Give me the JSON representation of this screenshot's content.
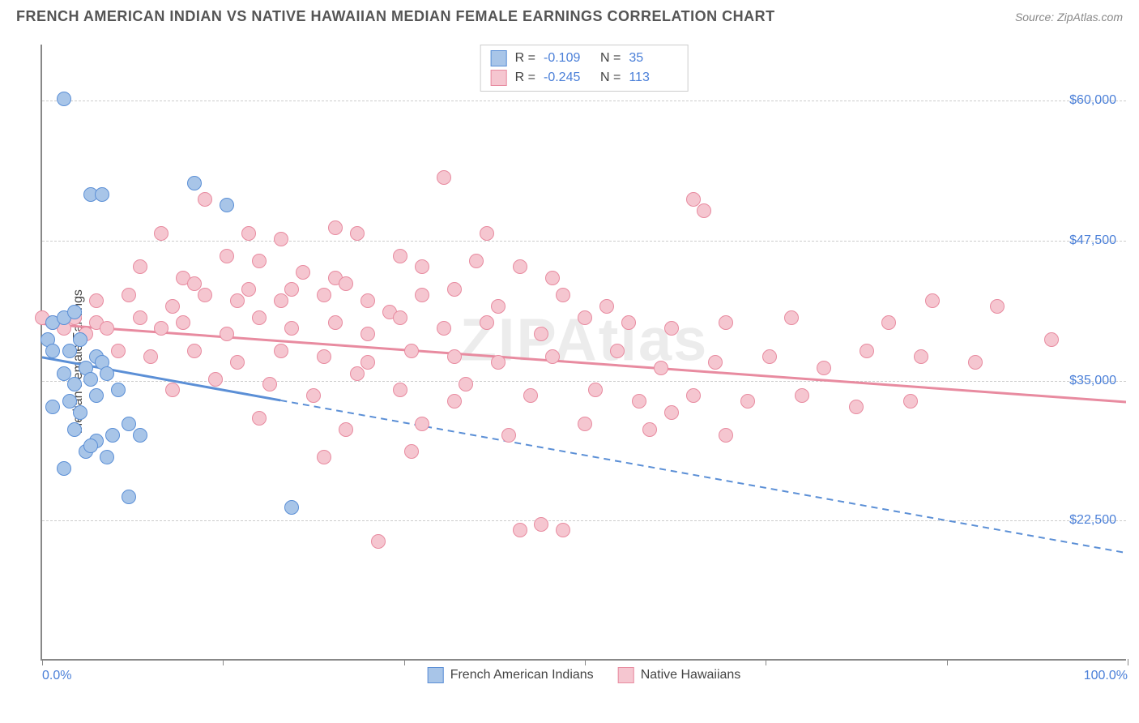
{
  "title": "FRENCH AMERICAN INDIAN VS NATIVE HAWAIIAN MEDIAN FEMALE EARNINGS CORRELATION CHART",
  "source": "Source: ZipAtlas.com",
  "watermark": "ZIPAtlas",
  "ylabel": "Median Female Earnings",
  "chart": {
    "type": "scatter",
    "xlim": [
      0,
      100
    ],
    "ylim": [
      10000,
      65000
    ],
    "yticks": [
      22500,
      35000,
      47500,
      60000
    ],
    "ytick_labels": [
      "$22,500",
      "$35,000",
      "$47,500",
      "$60,000"
    ],
    "xticks": [
      0,
      16.67,
      33.33,
      50,
      66.67,
      83.33,
      100
    ],
    "xtick_labels_shown": {
      "0": "0.0%",
      "100": "100.0%"
    },
    "grid_color": "#cccccc",
    "axis_color": "#888888",
    "background_color": "#ffffff",
    "tick_label_color": "#4a7fd8",
    "marker_radius": 9,
    "marker_border_width": 1.5,
    "marker_fill_opacity": 0.25
  },
  "series": [
    {
      "name": "French American Indians",
      "color_border": "#5b8fd6",
      "color_fill": "#a8c5e8",
      "R": "-0.109",
      "N": "35",
      "trend": {
        "x1": 0,
        "y1": 37000,
        "x2": 100,
        "y2": 19500,
        "solid_until_x": 22
      },
      "points": [
        [
          2,
          60000
        ],
        [
          4.5,
          51500
        ],
        [
          5.5,
          51500
        ],
        [
          14,
          52500
        ],
        [
          17,
          50500
        ],
        [
          1,
          40000
        ],
        [
          0.5,
          38500
        ],
        [
          1,
          37500
        ],
        [
          2,
          40500
        ],
        [
          2.5,
          37500
        ],
        [
          3,
          41000
        ],
        [
          3.5,
          38500
        ],
        [
          4,
          36000
        ],
        [
          5,
          37000
        ],
        [
          2,
          35500
        ],
        [
          3,
          34500
        ],
        [
          4.5,
          35000
        ],
        [
          5.5,
          36500
        ],
        [
          1,
          32500
        ],
        [
          2.5,
          33000
        ],
        [
          3.5,
          32000
        ],
        [
          5,
          33500
        ],
        [
          6,
          35500
        ],
        [
          7,
          34000
        ],
        [
          3,
          30500
        ],
        [
          5,
          29500
        ],
        [
          4,
          28500
        ],
        [
          6.5,
          30000
        ],
        [
          8,
          31000
        ],
        [
          9,
          30000
        ],
        [
          2,
          27000
        ],
        [
          4.5,
          29000
        ],
        [
          6,
          28000
        ],
        [
          8,
          24500
        ],
        [
          23,
          23500
        ]
      ]
    },
    {
      "name": "Native Hawaiians",
      "color_border": "#e88ba0",
      "color_fill": "#f5c6d0",
      "R": "-0.245",
      "N": "113",
      "trend": {
        "x1": 0,
        "y1": 40000,
        "x2": 100,
        "y2": 33000,
        "solid_until_x": 100
      },
      "points": [
        [
          15,
          51000
        ],
        [
          37,
          53000
        ],
        [
          60,
          51000
        ],
        [
          11,
          48000
        ],
        [
          19,
          48000
        ],
        [
          22,
          47500
        ],
        [
          27,
          48500
        ],
        [
          29,
          48000
        ],
        [
          41,
          48000
        ],
        [
          61,
          50000
        ],
        [
          9,
          45000
        ],
        [
          13,
          44000
        ],
        [
          17,
          46000
        ],
        [
          20,
          45500
        ],
        [
          24,
          44500
        ],
        [
          27,
          44000
        ],
        [
          33,
          46000
        ],
        [
          35,
          45000
        ],
        [
          40,
          45500
        ],
        [
          44,
          45000
        ],
        [
          47,
          44000
        ],
        [
          5,
          42000
        ],
        [
          8,
          42500
        ],
        [
          12,
          41500
        ],
        [
          14,
          43500
        ],
        [
          15,
          42500
        ],
        [
          18,
          42000
        ],
        [
          19,
          43000
        ],
        [
          22,
          42000
        ],
        [
          23,
          43000
        ],
        [
          26,
          42500
        ],
        [
          28,
          43500
        ],
        [
          30,
          42000
        ],
        [
          32,
          41000
        ],
        [
          35,
          42500
        ],
        [
          38,
          43000
        ],
        [
          42,
          41500
        ],
        [
          48,
          42500
        ],
        [
          52,
          41500
        ],
        [
          0,
          40500
        ],
        [
          1,
          40000
        ],
        [
          2,
          39500
        ],
        [
          3,
          40500
        ],
        [
          4,
          39000
        ],
        [
          5,
          40000
        ],
        [
          6,
          39500
        ],
        [
          9,
          40500
        ],
        [
          11,
          39500
        ],
        [
          13,
          40000
        ],
        [
          17,
          39000
        ],
        [
          20,
          40500
        ],
        [
          23,
          39500
        ],
        [
          27,
          40000
        ],
        [
          30,
          39000
        ],
        [
          33,
          40500
        ],
        [
          37,
          39500
        ],
        [
          41,
          40000
        ],
        [
          46,
          39000
        ],
        [
          50,
          40500
        ],
        [
          54,
          40000
        ],
        [
          58,
          39500
        ],
        [
          63,
          40000
        ],
        [
          69,
          40500
        ],
        [
          78,
          40000
        ],
        [
          82,
          42000
        ],
        [
          88,
          41500
        ],
        [
          93,
          38500
        ],
        [
          7,
          37500
        ],
        [
          10,
          37000
        ],
        [
          14,
          37500
        ],
        [
          18,
          36500
        ],
        [
          22,
          37500
        ],
        [
          26,
          37000
        ],
        [
          30,
          36500
        ],
        [
          34,
          37500
        ],
        [
          38,
          37000
        ],
        [
          42,
          36500
        ],
        [
          47,
          37000
        ],
        [
          53,
          37500
        ],
        [
          57,
          36000
        ],
        [
          62,
          36500
        ],
        [
          67,
          37000
        ],
        [
          72,
          36000
        ],
        [
          76,
          37500
        ],
        [
          81,
          37000
        ],
        [
          86,
          36500
        ],
        [
          12,
          34000
        ],
        [
          16,
          35000
        ],
        [
          21,
          34500
        ],
        [
          25,
          33500
        ],
        [
          29,
          35500
        ],
        [
          33,
          34000
        ],
        [
          39,
          34500
        ],
        [
          45,
          33500
        ],
        [
          51,
          34000
        ],
        [
          55,
          33000
        ],
        [
          60,
          33500
        ],
        [
          65,
          33000
        ],
        [
          70,
          33500
        ],
        [
          75,
          32500
        ],
        [
          80,
          33000
        ],
        [
          20,
          31500
        ],
        [
          28,
          30500
        ],
        [
          35,
          31000
        ],
        [
          43,
          30000
        ],
        [
          50,
          31000
        ],
        [
          56,
          30500
        ],
        [
          63,
          30000
        ],
        [
          58,
          32000
        ],
        [
          31,
          20500
        ],
        [
          44,
          21500
        ],
        [
          46,
          22000
        ],
        [
          48,
          21500
        ],
        [
          26,
          28000
        ],
        [
          34,
          28500
        ],
        [
          38,
          33000
        ]
      ]
    }
  ],
  "legend": [
    {
      "label": "French American Indians",
      "border": "#5b8fd6",
      "fill": "#a8c5e8"
    },
    {
      "label": "Native Hawaiians",
      "border": "#e88ba0",
      "fill": "#f5c6d0"
    }
  ]
}
